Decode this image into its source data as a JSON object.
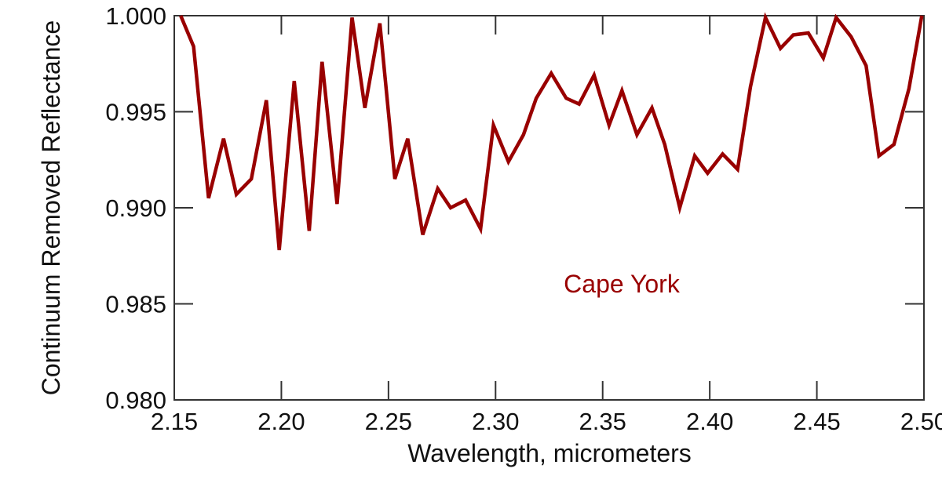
{
  "chart_data": {
    "type": "line",
    "title": "",
    "xlabel": "Wavelength, micrometers",
    "ylabel": "Continuum Removed Reflectance",
    "xlim": [
      2.15,
      2.5
    ],
    "ylim": [
      0.98,
      1.0
    ],
    "xticks": [
      "2.15",
      "2.20",
      "2.25",
      "2.30",
      "2.35",
      "2.40",
      "2.45",
      "2.50"
    ],
    "yticks": [
      "0.980",
      "0.985",
      "0.990",
      "0.995",
      "1.000"
    ],
    "grid": false,
    "annotation": "Cape York",
    "line_color": "#990000",
    "series": [
      {
        "x": [
          2.153,
          2.159,
          2.166,
          2.173,
          2.179,
          2.186,
          2.193,
          2.199,
          2.206,
          2.213,
          2.219,
          2.226,
          2.233,
          2.239,
          2.246,
          2.253,
          2.259,
          2.266,
          2.273,
          2.279,
          2.286,
          2.293,
          2.299,
          2.306,
          2.313,
          2.319,
          2.326,
          2.333,
          2.339,
          2.346,
          2.353,
          2.359,
          2.366,
          2.373,
          2.379,
          2.386,
          2.393,
          2.399,
          2.406,
          2.413,
          2.419,
          2.426,
          2.433,
          2.439,
          2.446,
          2.453,
          2.459,
          2.466,
          2.473,
          2.479,
          2.486,
          2.493,
          2.499
        ],
        "y": [
          1.0,
          0.9984,
          0.9905,
          0.9936,
          0.9907,
          0.9915,
          0.9956,
          0.9878,
          0.9966,
          0.9888,
          0.9976,
          0.9902,
          0.9999,
          0.9952,
          0.9996,
          0.9915,
          0.9936,
          0.9886,
          0.991,
          0.99,
          0.9904,
          0.9889,
          0.9943,
          0.9924,
          0.9938,
          0.9957,
          0.997,
          0.9957,
          0.9954,
          0.9969,
          0.9943,
          0.9961,
          0.9938,
          0.9952,
          0.9933,
          0.99,
          0.9927,
          0.9918,
          0.9928,
          0.992,
          0.9963,
          0.9999,
          0.9983,
          0.999,
          0.9991,
          0.9978,
          0.9999,
          0.9989,
          0.9974,
          0.9927,
          0.9933,
          0.9962,
          1.0
        ]
      }
    ]
  }
}
